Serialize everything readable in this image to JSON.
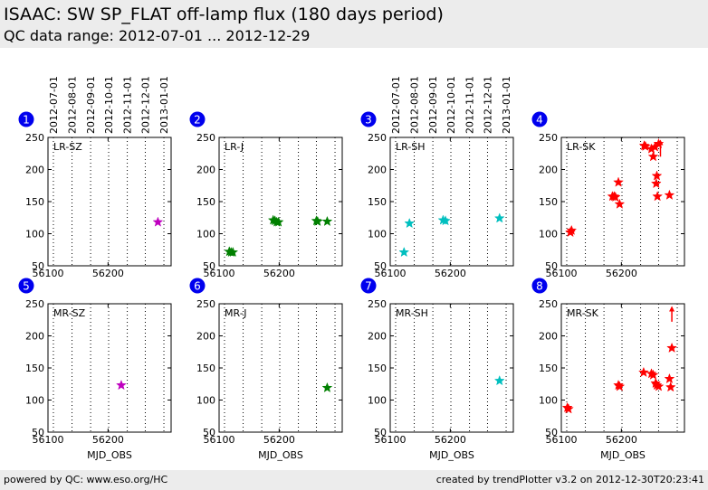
{
  "header": {
    "title": "ISAAC: SW SP_FLAT off-lamp flux (180 days period)",
    "subtitle": "QC data range: 2012-07-01 ... 2012-12-29"
  },
  "footer": {
    "left": "powered by QC: www.eso.org/HC",
    "right": "created by trendPlotter v3.2 on 2012-12-30T20:23:41"
  },
  "colors": {
    "magenta": "#bf00bf",
    "green": "#008000",
    "cyan": "#00bfbf",
    "red": "#ff0000",
    "badge": "#0000ee"
  },
  "date_ticks": [
    "2012-07-01",
    "2012-08-01",
    "2012-09-01",
    "2012-10-01",
    "2012-11-01",
    "2012-12-01",
    "2013-01-01"
  ],
  "chart_data": [
    {
      "type": "scatter",
      "badge": "1",
      "label": "LR-SZ",
      "xlabel": "",
      "xlim": [
        56100,
        56305
      ],
      "ylim": [
        50,
        250
      ],
      "xticks": [
        56100,
        56200
      ],
      "yticks": [
        50,
        100,
        150,
        200,
        250
      ],
      "color": "magenta",
      "grid": true,
      "points": [
        [
          56283,
          118
        ]
      ],
      "arrows": []
    },
    {
      "type": "scatter",
      "badge": "2",
      "label": "LR-J",
      "xlabel": "",
      "xlim": [
        56100,
        56305
      ],
      "ylim": [
        50,
        250
      ],
      "xticks": [
        56100,
        56200
      ],
      "yticks": [
        50,
        100,
        150,
        200,
        250
      ],
      "color": "green",
      "grid": true,
      "points": [
        [
          56117,
          72
        ],
        [
          56120,
          71
        ],
        [
          56123,
          71
        ],
        [
          56190,
          121
        ],
        [
          56193,
          120
        ],
        [
          56196,
          118
        ],
        [
          56199,
          118
        ],
        [
          56262,
          120
        ],
        [
          56264,
          119
        ],
        [
          56280,
          119
        ]
      ],
      "arrows": []
    },
    {
      "type": "scatter",
      "badge": "3",
      "label": "LR-SH",
      "xlabel": "",
      "xlim": [
        56100,
        56305
      ],
      "ylim": [
        50,
        250
      ],
      "xticks": [
        56100,
        56200
      ],
      "yticks": [
        50,
        100,
        150,
        200,
        250
      ],
      "color": "cyan",
      "grid": true,
      "points": [
        [
          56123,
          71
        ],
        [
          56132,
          116
        ],
        [
          56188,
          121
        ],
        [
          56192,
          120
        ],
        [
          56282,
          124
        ]
      ],
      "arrows": []
    },
    {
      "type": "scatter",
      "badge": "4",
      "label": "LR-SK",
      "xlabel": "",
      "xlim": [
        56100,
        56305
      ],
      "ylim": [
        50,
        250
      ],
      "xticks": [
        56100,
        56200
      ],
      "yticks": [
        50,
        100,
        150,
        200,
        250
      ],
      "color": "red",
      "grid": true,
      "points": [
        [
          56115,
          102
        ],
        [
          56117,
          105
        ],
        [
          56185,
          158
        ],
        [
          56188,
          158
        ],
        [
          56190,
          157
        ],
        [
          56195,
          180
        ],
        [
          56197,
          146
        ],
        [
          56238,
          237
        ],
        [
          56240,
          236
        ],
        [
          56250,
          232
        ],
        [
          56253,
          220
        ],
        [
          56256,
          235
        ],
        [
          56258,
          178
        ],
        [
          56259,
          190
        ],
        [
          56260,
          158
        ],
        [
          56262,
          240
        ],
        [
          56280,
          160
        ]
      ],
      "arrows": [
        [
          56265,
          220,
          245
        ]
      ]
    },
    {
      "type": "scatter",
      "badge": "5",
      "label": "MR-SZ",
      "xlabel": "MJD_OBS",
      "xlim": [
        56100,
        56305
      ],
      "ylim": [
        50,
        250
      ],
      "xticks": [
        56100,
        56200
      ],
      "yticks": [
        50,
        100,
        150,
        200,
        250
      ],
      "color": "magenta",
      "grid": true,
      "points": [
        [
          56222,
          123
        ]
      ],
      "arrows": []
    },
    {
      "type": "scatter",
      "badge": "6",
      "label": "MR-J",
      "xlabel": "MJD_OBS",
      "xlim": [
        56100,
        56305
      ],
      "ylim": [
        50,
        250
      ],
      "xticks": [
        56100,
        56200
      ],
      "yticks": [
        50,
        100,
        150,
        200,
        250
      ],
      "color": "green",
      "grid": true,
      "points": [
        [
          56280,
          119
        ]
      ],
      "arrows": []
    },
    {
      "type": "scatter",
      "badge": "7",
      "label": "MR-SH",
      "xlabel": "MJD_OBS",
      "xlim": [
        56100,
        56305
      ],
      "ylim": [
        50,
        250
      ],
      "xticks": [
        56100,
        56200
      ],
      "yticks": [
        50,
        100,
        150,
        200,
        250
      ],
      "color": "cyan",
      "grid": true,
      "points": [
        [
          56282,
          130
        ]
      ],
      "arrows": []
    },
    {
      "type": "scatter",
      "badge": "8",
      "label": "MR-SK",
      "xlabel": "MJD_OBS",
      "xlim": [
        56100,
        56305
      ],
      "ylim": [
        50,
        250
      ],
      "xticks": [
        56100,
        56200
      ],
      "yticks": [
        50,
        100,
        150,
        200,
        250
      ],
      "color": "red",
      "grid": true,
      "points": [
        [
          56110,
          88
        ],
        [
          56112,
          86
        ],
        [
          56195,
          123
        ],
        [
          56197,
          121
        ],
        [
          56237,
          143
        ],
        [
          56250,
          141
        ],
        [
          56253,
          139
        ],
        [
          56257,
          126
        ],
        [
          56259,
          123
        ],
        [
          56262,
          121
        ],
        [
          56280,
          133
        ],
        [
          56282,
          120
        ],
        [
          56284,
          181
        ]
      ],
      "arrows": [
        [
          56284,
          222,
          245
        ]
      ]
    }
  ]
}
